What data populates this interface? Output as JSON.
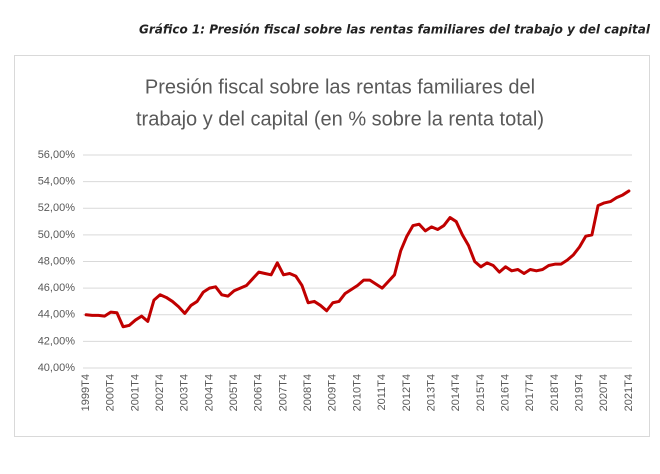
{
  "caption": "Gráfico 1: Presión fiscal sobre las rentas familiares del trabajo y del capital",
  "chart_data": {
    "type": "line",
    "title": [
      "Presión fiscal sobre las rentas familiares del",
      "trabajo y del capital (en % sobre la renta total)"
    ],
    "categories": [
      "1999T4",
      null,
      null,
      null,
      "2000T4",
      null,
      null,
      null,
      "2001T4",
      null,
      null,
      null,
      "2002T4",
      null,
      null,
      null,
      "2003T4",
      null,
      null,
      null,
      "2004T4",
      null,
      null,
      null,
      "2005T4",
      null,
      null,
      null,
      "2006T4",
      null,
      null,
      null,
      "2007T4",
      null,
      null,
      null,
      "2008T4",
      null,
      null,
      null,
      "2009T4",
      null,
      null,
      null,
      "2010T4",
      null,
      null,
      null,
      "2011T4",
      null,
      null,
      null,
      "2012T4",
      null,
      null,
      null,
      "2013T4",
      null,
      null,
      null,
      "2014T4",
      null,
      null,
      null,
      "2015T4",
      null,
      null,
      null,
      "2016T4",
      null,
      null,
      null,
      "2017T4",
      null,
      null,
      null,
      "2018T4",
      null,
      null,
      null,
      "2019T4",
      null,
      null,
      null,
      "2020T4",
      null,
      null,
      null,
      "2021T4"
    ],
    "values": [
      44.0,
      43.95,
      43.95,
      43.9,
      44.2,
      44.15,
      43.1,
      43.2,
      43.6,
      43.9,
      43.5,
      45.1,
      45.5,
      45.3,
      45.0,
      44.6,
      44.1,
      44.7,
      45.0,
      45.7,
      46.0,
      46.1,
      45.5,
      45.4,
      45.8,
      46.0,
      46.2,
      46.7,
      47.2,
      47.1,
      47.0,
      47.9,
      47.0,
      47.1,
      46.9,
      46.2,
      44.9,
      45.0,
      44.7,
      44.3,
      44.9,
      45.0,
      45.6,
      45.9,
      46.2,
      46.6,
      46.6,
      46.3,
      46.0,
      46.5,
      47.0,
      48.8,
      49.9,
      50.7,
      50.8,
      50.3,
      50.6,
      50.4,
      50.7,
      51.3,
      51.0,
      50.0,
      49.2,
      48.0,
      47.6,
      47.9,
      47.7,
      47.2,
      47.6,
      47.3,
      47.4,
      47.1,
      47.4,
      47.3,
      47.4,
      47.7,
      47.8,
      47.8,
      48.1,
      48.5,
      49.1,
      49.9,
      50.0,
      52.2,
      52.4,
      52.5,
      52.8,
      53.0,
      53.3
    ],
    "color": "#c00000",
    "ylim": [
      40,
      56
    ],
    "yticks": [
      {
        "value": 40,
        "label": "40,00%"
      },
      {
        "value": 42,
        "label": "42,00%"
      },
      {
        "value": 44,
        "label": "44,00%"
      },
      {
        "value": 46,
        "label": "46,00%"
      },
      {
        "value": 48,
        "label": "48,00%"
      },
      {
        "value": 50,
        "label": "50,00%"
      },
      {
        "value": 52,
        "label": "52,00%"
      },
      {
        "value": 54,
        "label": "54,00%"
      },
      {
        "value": 56,
        "label": "56,00%"
      }
    ],
    "grid": true
  }
}
